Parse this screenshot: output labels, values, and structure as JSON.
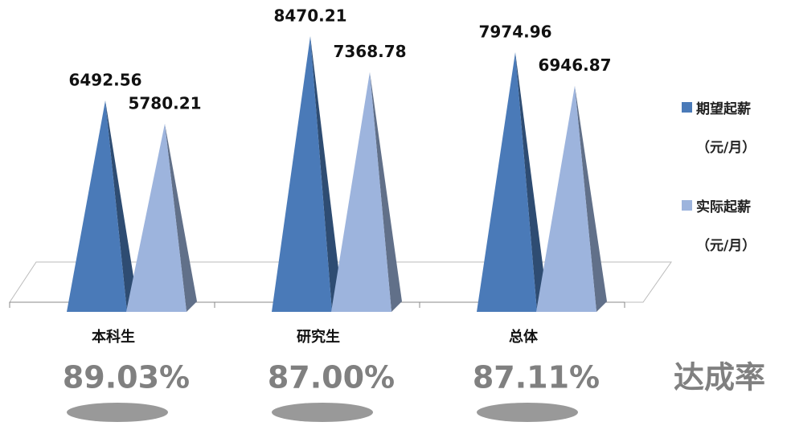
{
  "chart_data": {
    "type": "pyramid",
    "categories": [
      "本科生",
      "研究生",
      "总体"
    ],
    "series": [
      {
        "name": "期望起薪（元/月）",
        "color": "#4a7ab8",
        "values": [
          6492.56,
          8470.21,
          7974.96
        ]
      },
      {
        "name": "实际起薪（元/月）",
        "color": "#9db4dd",
        "values": [
          5780.21,
          7368.78,
          6946.87
        ]
      }
    ],
    "rates": {
      "label": "达成率",
      "values": [
        89.03,
        87.0,
        87.11
      ],
      "value_labels": [
        "89.03%",
        "87.00%",
        "87.11%"
      ]
    },
    "legend": "right"
  }
}
